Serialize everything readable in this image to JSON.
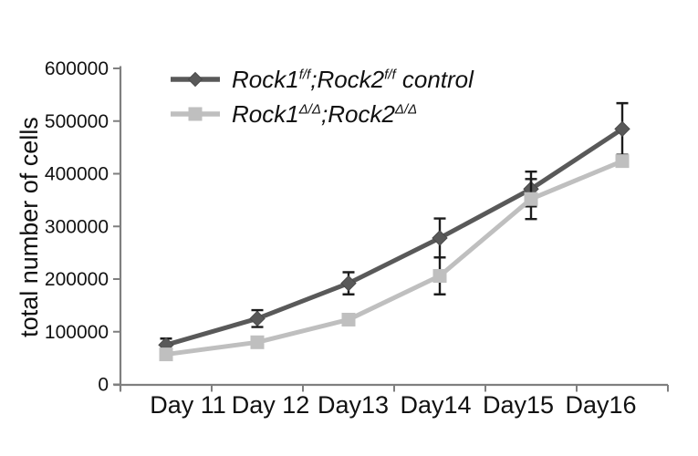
{
  "figure": {
    "background": "#ffffff"
  },
  "chart_data": {
    "type": "line",
    "title": "",
    "grid": false,
    "legend_position": "top-left-inside",
    "axis_color": "#7f7f7f",
    "error_bar_color": "#1c1c1c",
    "x_axis": {
      "categories": [
        "Day 11",
        "Day 12",
        "Day13",
        "Day14",
        "Day15",
        "Day16"
      ]
    },
    "y_axis": {
      "label": "total number of cells",
      "min": 0,
      "max": 600000,
      "tick_step": 100000,
      "ticks": [
        0,
        100000,
        200000,
        300000,
        400000,
        500000,
        600000
      ],
      "tick_labels": [
        "0",
        "100000",
        "200000",
        "300000",
        "400000",
        "500000",
        "600000"
      ]
    },
    "series": [
      {
        "name": "Rock1f/f;Rock2f/f control",
        "marker": "diamond",
        "color": "#595959",
        "values": [
          75000,
          125000,
          192000,
          278000,
          371000,
          485000
        ],
        "errors": [
          12000,
          16000,
          21000,
          37000,
          33000,
          49000
        ]
      },
      {
        "name": "Rock1Δ/Δ;Rock2Δ/Δ",
        "marker": "square",
        "color": "#bfbfbf",
        "values": [
          57000,
          80000,
          123000,
          206000,
          352000,
          424000
        ],
        "errors": [
          0,
          0,
          0,
          35000,
          38000,
          0
        ]
      }
    ]
  },
  "legend": {
    "items": [
      {
        "pre": "Rock1",
        "sup1": "f/f",
        "mid": ";Rock2",
        "sup2": "f/f",
        "post": " control"
      },
      {
        "pre": "Rock1",
        "sup1": "Δ/Δ",
        "mid": ";Rock2",
        "sup2": "Δ/Δ",
        "post": ""
      }
    ]
  }
}
